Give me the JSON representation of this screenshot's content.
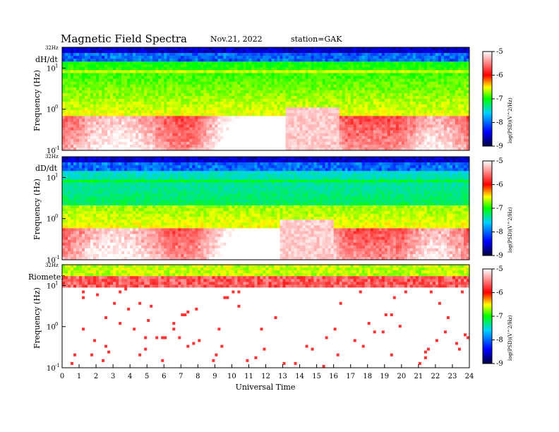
{
  "header": {
    "title": "Magnetic  Field  Spectra",
    "date": "Nov.21, 2022",
    "station": "station=GAK"
  },
  "chart_data": [
    {
      "type": "heatmap",
      "name": "dH/dt",
      "ylabel": "Frequency  (Hz)",
      "top_label": "32Hz",
      "yticks": [
        "10",
        "10",
        "10"
      ],
      "yexponents": [
        "1",
        "0",
        "-1"
      ],
      "ylim_hz": [
        0.1,
        32
      ],
      "x": {
        "label": "Universal  Time",
        "range": [
          0,
          24
        ]
      },
      "colorbar": {
        "label": "log(PSD)(V^2/Hz)",
        "range": [
          -9,
          -5
        ],
        "ticks": [
          "-5",
          "-6",
          "-7",
          "-8",
          "-9"
        ]
      },
      "features": {
        "low_freq_saturated_hz": 0.7,
        "peak_power_at_ut": [
          13.2,
          16.3
        ],
        "peak_cap_hz": 1.05,
        "band_line_hz": 8
      }
    },
    {
      "type": "heatmap",
      "name": "dD/dt",
      "ylabel": "Frequency  (Hz)",
      "top_label": "32Hz",
      "yticks": [
        "10",
        "10",
        "10"
      ],
      "yexponents": [
        "1",
        "0",
        "-1"
      ],
      "ylim_hz": [
        0.1,
        32
      ],
      "x": {
        "label": "Universal  Time",
        "range": [
          0,
          24
        ]
      },
      "colorbar": {
        "label": "log(PSD)(V^2/Hz)",
        "range": [
          -9,
          -5
        ],
        "ticks": [
          "-5",
          "-6",
          "-7",
          "-8",
          "-9"
        ]
      },
      "features": {
        "low_freq_saturated_hz": 0.6,
        "peak_power_at_ut": [
          12.9,
          16.0
        ],
        "peak_cap_hz": 0.95,
        "band_line_hz": 8
      }
    },
    {
      "type": "heatmap",
      "name": "Riometer",
      "ylabel": "Frequency  (Hz)",
      "top_label": "32Hz",
      "yticks": [
        "10",
        "10",
        "10"
      ],
      "yexponents": [
        "1",
        "0",
        "-1"
      ],
      "ylim_hz": [
        0.1,
        32
      ],
      "x": {
        "label": "Universal  Time",
        "range": [
          0,
          24
        ]
      },
      "colorbar": {
        "label": "log(PSD)(V^2/Hz)",
        "range": [
          -9,
          -5
        ],
        "ticks": [
          "-5",
          "-6",
          "-7",
          "-8",
          "-9"
        ]
      },
      "features": {
        "high_power_band_hz": [
          10,
          32
        ]
      }
    }
  ],
  "xaxis": {
    "label": "Universal  Time",
    "ticks": [
      "0",
      "1",
      "2",
      "3",
      "4",
      "5",
      "6",
      "7",
      "8",
      "9",
      "10",
      "11",
      "12",
      "13",
      "14",
      "15",
      "16",
      "17",
      "18",
      "19",
      "20",
      "21",
      "22",
      "23",
      "24"
    ]
  },
  "colors": {
    "colormap": [
      "#000050",
      "#0000ff",
      "#00ffff",
      "#00ff00",
      "#ffff00",
      "#ff0000",
      "#ffffff"
    ]
  }
}
